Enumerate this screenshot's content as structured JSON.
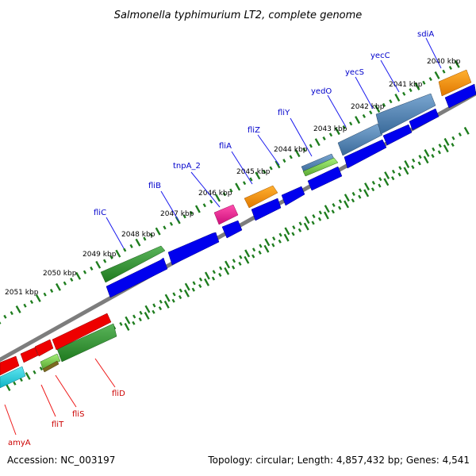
{
  "title": "Salmonella typhimurium LT2, complete genome",
  "accession": "Accession: NC_003197",
  "summary": "Topology: circular; Length: 4,857,432 bp; Genes: 4,541",
  "colors": {
    "backbone": "#808080",
    "ticks": "#1e7d1e",
    "forward_label": "#0000cc",
    "reverse_label": "#cc0000"
  },
  "kbp_labels": [
    "2040 kbp",
    "2041 kbp",
    "2042 kbp",
    "2043 kbp",
    "2044 kbp",
    "2045 kbp",
    "2046 kbp",
    "2047 kbp",
    "2048 kbp",
    "2049 kbp",
    "2050 kbp",
    "2051 kbp"
  ],
  "forward_genes": [
    "sdiA",
    "yecC",
    "yecS",
    "yedO",
    "fliY",
    "fliZ",
    "fliA",
    "tnpA_2",
    "fliB",
    "fliC"
  ],
  "reverse_genes": [
    "fliD",
    "fliS",
    "fliT",
    "amyA"
  ]
}
